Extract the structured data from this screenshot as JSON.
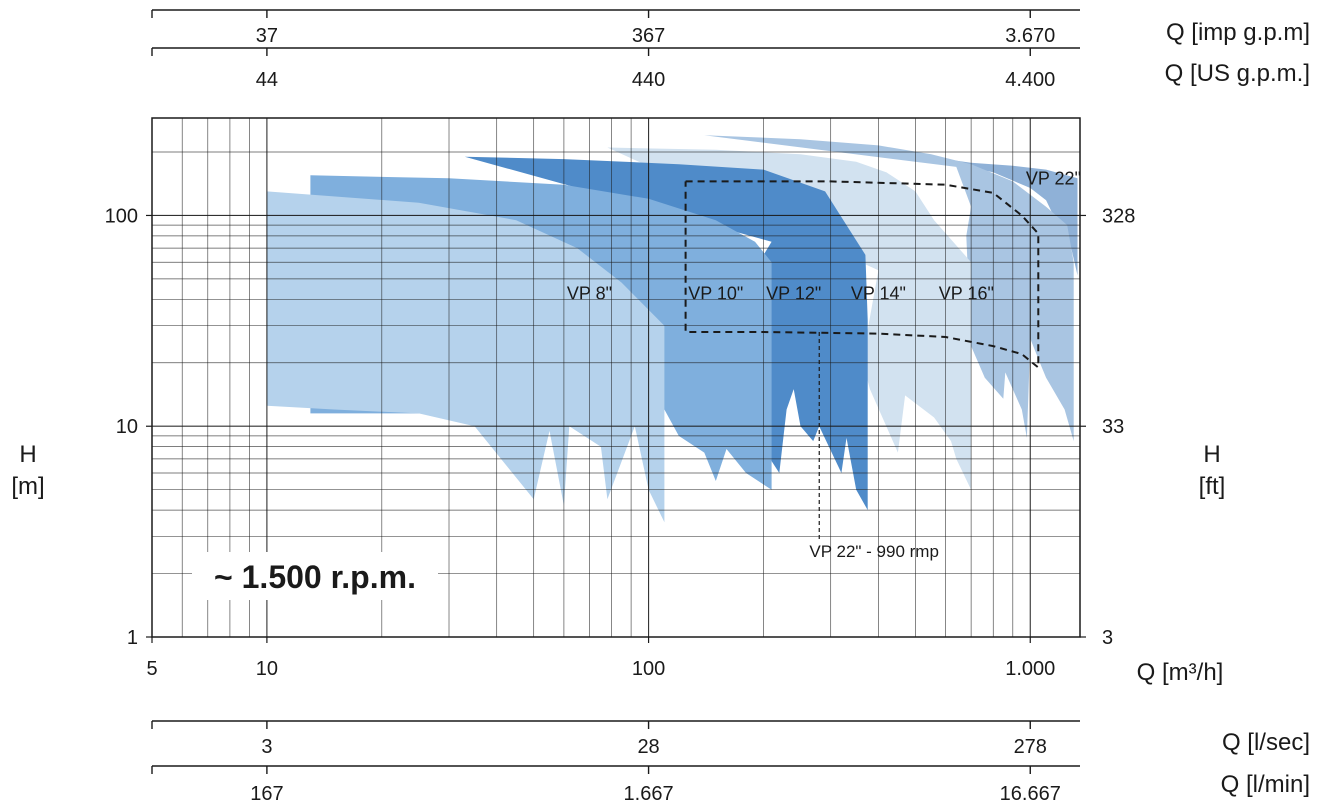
{
  "chart_data": {
    "type": "area",
    "x_scale": "log",
    "y_scale": "log",
    "xlim": [
      5,
      1400
    ],
    "ylim": [
      1,
      300
    ],
    "grid": true,
    "xlabel": "Q [m³/h]",
    "ylabel_left_1": "H",
    "ylabel_left_2": "[m]",
    "ylabel_right_1": "H",
    "ylabel_right_2": "[ft]",
    "x_ticks": [
      {
        "value": 5,
        "label": "5"
      },
      {
        "value": 10,
        "label": "10"
      },
      {
        "value": 100,
        "label": "100"
      },
      {
        "value": 1000,
        "label": "1.000"
      }
    ],
    "y_ticks_left": [
      {
        "value": 1,
        "label": "1"
      },
      {
        "value": 10,
        "label": "10"
      },
      {
        "value": 100,
        "label": "100"
      }
    ],
    "y_ticks_right": [
      {
        "value": 1,
        "label": "3"
      },
      {
        "value": 10,
        "label": "33"
      },
      {
        "value": 100,
        "label": "328"
      }
    ],
    "secondary_axes": [
      {
        "id": "imp",
        "label": "Q [imp g.p.m]",
        "ticks": [
          {
            "at_q": 10,
            "label": "37"
          },
          {
            "at_q": 100,
            "label": "367"
          },
          {
            "at_q": 1000,
            "label": "3.670"
          }
        ]
      },
      {
        "id": "us",
        "label": "Q [US g.p.m.]",
        "ticks": [
          {
            "at_q": 10,
            "label": "44"
          },
          {
            "at_q": 100,
            "label": "440"
          },
          {
            "at_q": 1000,
            "label": "4.400"
          }
        ]
      },
      {
        "id": "lsec",
        "label": "Q [l/sec]",
        "ticks": [
          {
            "at_q": 10,
            "label": "3"
          },
          {
            "at_q": 100,
            "label": "28"
          },
          {
            "at_q": 1000,
            "label": "278"
          }
        ]
      },
      {
        "id": "lmin",
        "label": "Q [l/min]",
        "ticks": [
          {
            "at_q": 10,
            "label": "167"
          },
          {
            "at_q": 100,
            "label": "1.667"
          },
          {
            "at_q": 1000,
            "label": "16.667"
          }
        ]
      }
    ],
    "series": [
      {
        "name": "VP 22\"",
        "color": "#8fb1d7",
        "points": [
          [
            540,
            190
          ],
          [
            700,
            178
          ],
          [
            900,
            172
          ],
          [
            1100,
            165
          ],
          [
            1330,
            150
          ],
          [
            1330,
            52
          ],
          [
            1280,
            70
          ],
          [
            1200,
            85
          ],
          [
            1150,
            100
          ],
          [
            1100,
            118
          ],
          [
            1000,
            135
          ],
          [
            800,
            160
          ],
          [
            600,
            180
          ],
          [
            540,
            185
          ]
        ]
      },
      {
        "name": "VP 16\"",
        "color": "#a9c5e2",
        "points": [
          [
            140,
            240
          ],
          [
            250,
            230
          ],
          [
            400,
            215
          ],
          [
            550,
            195
          ],
          [
            700,
            175
          ],
          [
            900,
            145
          ],
          [
            1100,
            110
          ],
          [
            1250,
            90
          ],
          [
            1300,
            60
          ],
          [
            1300,
            8.5
          ],
          [
            1230,
            12
          ],
          [
            1100,
            17
          ],
          [
            1060,
            20
          ],
          [
            1000,
            26
          ],
          [
            980,
            8.8
          ],
          [
            950,
            12
          ],
          [
            860,
            18
          ],
          [
            850,
            13.5
          ],
          [
            760,
            17
          ],
          [
            700,
            24
          ],
          [
            680,
            80
          ],
          [
            700,
            110
          ],
          [
            640,
            170
          ]
        ]
      },
      {
        "name": "VP 14\"",
        "color": "#d2e2f0",
        "points": [
          [
            78,
            210
          ],
          [
            150,
            205
          ],
          [
            250,
            195
          ],
          [
            350,
            180
          ],
          [
            420,
            160
          ],
          [
            500,
            130
          ],
          [
            560,
            95
          ],
          [
            700,
            60
          ],
          [
            700,
            5
          ],
          [
            640,
            7
          ],
          [
            620,
            8.5
          ],
          [
            560,
            11
          ],
          [
            470,
            14
          ],
          [
            450,
            7.5
          ],
          [
            380,
            15
          ],
          [
            370,
            18
          ],
          [
            370,
            25
          ],
          [
            400,
            55
          ]
        ]
      },
      {
        "name": "VP 12\"",
        "color": "#4f8bc9",
        "points": [
          [
            33,
            190
          ],
          [
            60,
            185
          ],
          [
            120,
            175
          ],
          [
            200,
            165
          ],
          [
            290,
            130
          ],
          [
            330,
            90
          ],
          [
            370,
            65
          ],
          [
            375,
            32
          ],
          [
            375,
            4
          ],
          [
            350,
            5
          ],
          [
            330,
            8.8
          ],
          [
            320,
            6
          ],
          [
            280,
            10
          ],
          [
            270,
            8.5
          ],
          [
            250,
            10
          ],
          [
            240,
            15
          ],
          [
            230,
            12
          ],
          [
            220,
            6
          ],
          [
            180,
            10.5
          ],
          [
            170,
            15
          ],
          [
            170,
            40
          ],
          [
            210,
            75
          ]
        ]
      },
      {
        "name": "VP 10\"",
        "color": "#7fafdd",
        "points": [
          [
            13,
            155
          ],
          [
            30,
            150
          ],
          [
            60,
            140
          ],
          [
            100,
            120
          ],
          [
            150,
            95
          ],
          [
            190,
            75
          ],
          [
            210,
            60
          ],
          [
            210,
            5
          ],
          [
            180,
            6
          ],
          [
            160,
            7.8
          ],
          [
            150,
            5.5
          ],
          [
            140,
            7.5
          ],
          [
            120,
            9
          ],
          [
            110,
            12
          ],
          [
            80,
            12
          ],
          [
            45,
            11.5
          ],
          [
            20,
            11.5
          ],
          [
            13,
            11.5
          ]
        ]
      },
      {
        "name": "VP 8\"",
        "color": "#b5d2ec",
        "points": [
          [
            10,
            130
          ],
          [
            25,
            115
          ],
          [
            45,
            95
          ],
          [
            65,
            70
          ],
          [
            85,
            48
          ],
          [
            110,
            30
          ],
          [
            110,
            3.5
          ],
          [
            100,
            5
          ],
          [
            92,
            10
          ],
          [
            78,
            4.5
          ],
          [
            75,
            8
          ],
          [
            62,
            10
          ],
          [
            60,
            4.2
          ],
          [
            55,
            9.5
          ],
          [
            50,
            4.5
          ],
          [
            35,
            10
          ],
          [
            25,
            11.5
          ],
          [
            15,
            12
          ],
          [
            10,
            12.5
          ]
        ]
      }
    ],
    "series_labels": [
      {
        "text": "VP 8\"",
        "q": 70,
        "h": 40
      },
      {
        "text": "VP 10\"",
        "q": 150,
        "h": 40
      },
      {
        "text": "VP 12\"",
        "q": 240,
        "h": 40
      },
      {
        "text": "VP 14\"",
        "q": 400,
        "h": 40
      },
      {
        "text": "VP 16\"",
        "q": 680,
        "h": 40
      },
      {
        "text": "VP 22\"",
        "q": 1150,
        "h": 140
      }
    ],
    "dashed_region": {
      "label": "VP 22\" - 990 rmp",
      "points": [
        [
          125,
          145
        ],
        [
          300,
          145
        ],
        [
          600,
          140
        ],
        [
          800,
          128
        ],
        [
          950,
          100
        ],
        [
          1050,
          82
        ],
        [
          1050,
          19
        ],
        [
          950,
          22
        ],
        [
          800,
          24
        ],
        [
          600,
          26.5
        ],
        [
          400,
          27.5
        ],
        [
          200,
          28
        ],
        [
          125,
          28
        ],
        [
          125,
          145
        ]
      ],
      "pointer": {
        "q": 280,
        "h_top": 28,
        "h_bottom": 2.9
      },
      "label_q": 390,
      "label_h": 2.4
    },
    "annotation": "~ 1.500 r.p.m."
  }
}
